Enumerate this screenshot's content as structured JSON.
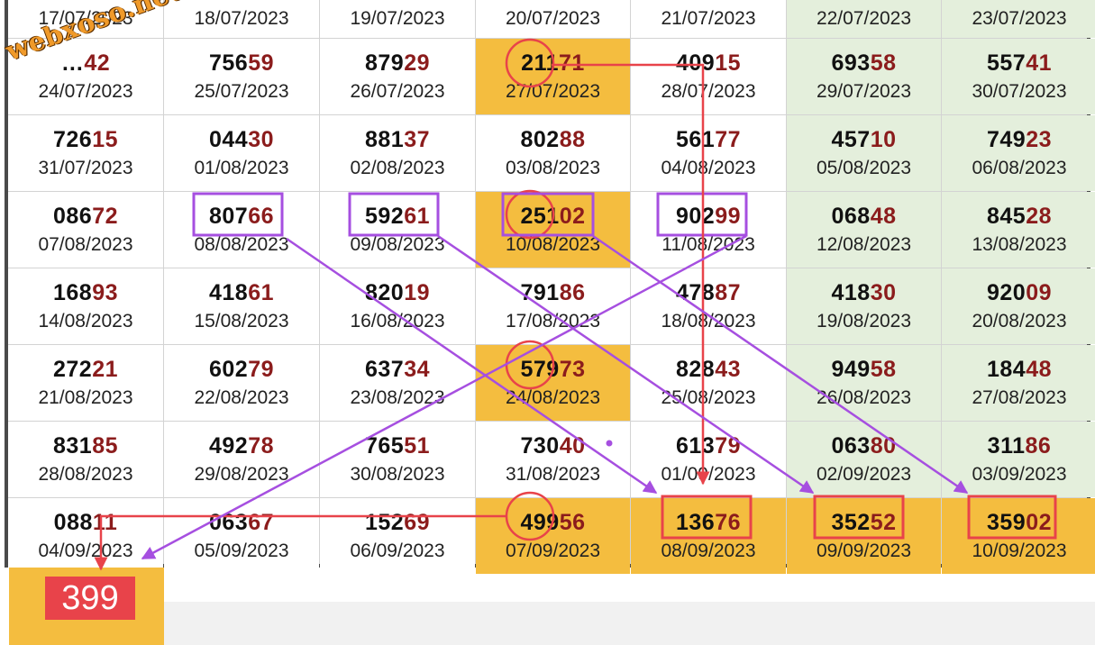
{
  "watermark": "webxoso.net",
  "result": "399",
  "rows": [
    [
      {
        "num": "",
        "date": "17/07/2023",
        "bg": "plain"
      },
      {
        "num": "",
        "date": "18/07/2023",
        "bg": "plain"
      },
      {
        "num": "",
        "date": "19/07/2023",
        "bg": "plain"
      },
      {
        "num": "",
        "date": "20/07/2023",
        "bg": "plain"
      },
      {
        "num": "",
        "date": "21/07/2023",
        "bg": "plain"
      },
      {
        "num": "",
        "date": "22/07/2023",
        "bg": "weekend"
      },
      {
        "num": "",
        "date": "23/07/2023",
        "bg": "weekend"
      }
    ],
    [
      {
        "num": "…42",
        "date": "24/07/2023",
        "bg": "plain"
      },
      {
        "num": "75659",
        "date": "25/07/2023",
        "bg": "plain"
      },
      {
        "num": "87929",
        "date": "26/07/2023",
        "bg": "plain"
      },
      {
        "num": "21171",
        "date": "27/07/2023",
        "bg": "highlight"
      },
      {
        "num": "40915",
        "date": "28/07/2023",
        "bg": "plain"
      },
      {
        "num": "69358",
        "date": "29/07/2023",
        "bg": "weekend"
      },
      {
        "num": "55741",
        "date": "30/07/2023",
        "bg": "weekend"
      }
    ],
    [
      {
        "num": "72615",
        "date": "31/07/2023",
        "bg": "plain"
      },
      {
        "num": "04430",
        "date": "01/08/2023",
        "bg": "plain"
      },
      {
        "num": "88137",
        "date": "02/08/2023",
        "bg": "plain"
      },
      {
        "num": "80288",
        "date": "03/08/2023",
        "bg": "plain"
      },
      {
        "num": "56177",
        "date": "04/08/2023",
        "bg": "plain"
      },
      {
        "num": "45710",
        "date": "05/08/2023",
        "bg": "weekend"
      },
      {
        "num": "74923",
        "date": "06/08/2023",
        "bg": "weekend"
      }
    ],
    [
      {
        "num": "08672",
        "date": "07/08/2023",
        "bg": "plain"
      },
      {
        "num": "80766",
        "date": "08/08/2023",
        "bg": "plain"
      },
      {
        "num": "59261",
        "date": "09/08/2023",
        "bg": "plain"
      },
      {
        "num": "25102",
        "date": "10/08/2023",
        "bg": "highlight"
      },
      {
        "num": "90299",
        "date": "11/08/2023",
        "bg": "plain"
      },
      {
        "num": "06848",
        "date": "12/08/2023",
        "bg": "weekend"
      },
      {
        "num": "84528",
        "date": "13/08/2023",
        "bg": "weekend"
      }
    ],
    [
      {
        "num": "16893",
        "date": "14/08/2023",
        "bg": "plain"
      },
      {
        "num": "41861",
        "date": "15/08/2023",
        "bg": "plain"
      },
      {
        "num": "82019",
        "date": "16/08/2023",
        "bg": "plain"
      },
      {
        "num": "79186",
        "date": "17/08/2023",
        "bg": "plain"
      },
      {
        "num": "47887",
        "date": "18/08/2023",
        "bg": "plain"
      },
      {
        "num": "41830",
        "date": "19/08/2023",
        "bg": "weekend"
      },
      {
        "num": "92009",
        "date": "20/08/2023",
        "bg": "weekend"
      }
    ],
    [
      {
        "num": "27221",
        "date": "21/08/2023",
        "bg": "plain"
      },
      {
        "num": "60279",
        "date": "22/08/2023",
        "bg": "plain"
      },
      {
        "num": "63734",
        "date": "23/08/2023",
        "bg": "plain"
      },
      {
        "num": "57973",
        "date": "24/08/2023",
        "bg": "highlight"
      },
      {
        "num": "82843",
        "date": "25/08/2023",
        "bg": "plain"
      },
      {
        "num": "94958",
        "date": "26/08/2023",
        "bg": "weekend"
      },
      {
        "num": "18448",
        "date": "27/08/2023",
        "bg": "weekend"
      }
    ],
    [
      {
        "num": "83185",
        "date": "28/08/2023",
        "bg": "plain"
      },
      {
        "num": "49278",
        "date": "29/08/2023",
        "bg": "plain"
      },
      {
        "num": "76551",
        "date": "30/08/2023",
        "bg": "plain"
      },
      {
        "num": "73040",
        "date": "31/08/2023",
        "bg": "plain"
      },
      {
        "num": "61379",
        "date": "01/09/2023",
        "bg": "plain"
      },
      {
        "num": "06380",
        "date": "02/09/2023",
        "bg": "weekend"
      },
      {
        "num": "31186",
        "date": "03/09/2023",
        "bg": "weekend"
      }
    ],
    [
      {
        "num": "08811",
        "date": "04/09/2023",
        "bg": "plain"
      },
      {
        "num": "06367",
        "date": "05/09/2023",
        "bg": "plain"
      },
      {
        "num": "15269",
        "date": "06/09/2023",
        "bg": "plain"
      },
      {
        "num": "49956",
        "date": "07/09/2023",
        "bg": "highlight"
      },
      {
        "num": "13676",
        "date": "08/09/2023",
        "bg": "highlight"
      },
      {
        "num": "35252",
        "date": "09/09/2023",
        "bg": "highlight"
      },
      {
        "num": "35902",
        "date": "10/09/2023",
        "bg": "highlight"
      }
    ]
  ],
  "colors": {
    "highlight": "#f4bd3f",
    "weekend": "#e4efdc",
    "tail_digits": "#8b1c1c",
    "red_marks": "#e8434a",
    "purple_marks": "#a64fe0"
  }
}
